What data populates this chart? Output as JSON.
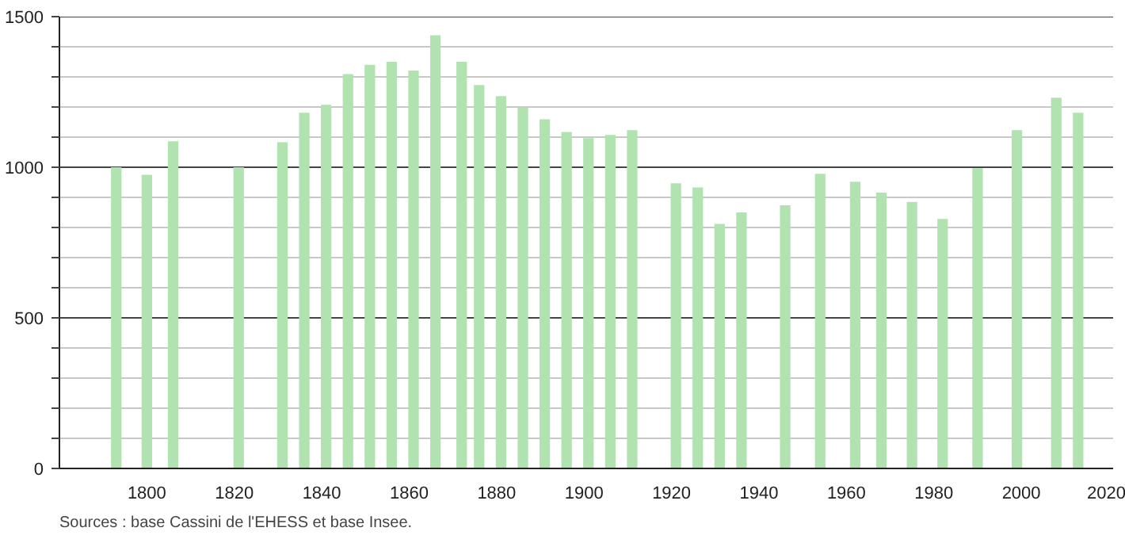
{
  "chart_data": {
    "type": "bar",
    "x": [
      1793,
      1800,
      1806,
      1821,
      1831,
      1836,
      1841,
      1846,
      1851,
      1856,
      1861,
      1866,
      1872,
      1876,
      1881,
      1886,
      1891,
      1896,
      1901,
      1906,
      1911,
      1921,
      1926,
      1931,
      1936,
      1946,
      1954,
      1962,
      1968,
      1975,
      1982,
      1990,
      1999,
      2008,
      2013
    ],
    "values": [
      1000,
      975,
      1086,
      1000,
      1083,
      1181,
      1207,
      1309,
      1340,
      1350,
      1321,
      1438,
      1350,
      1273,
      1236,
      1199,
      1159,
      1117,
      1097,
      1107,
      1123,
      947,
      933,
      812,
      850,
      874,
      978,
      952,
      916,
      885,
      828,
      997,
      1123,
      1231,
      1181
    ],
    "color": "#b0e3b0",
    "xlim": [
      1780,
      2021
    ],
    "xticks": [
      1800,
      1820,
      1840,
      1860,
      1880,
      1900,
      1920,
      1940,
      1960,
      1980,
      2000,
      2020
    ],
    "ylim": [
      0,
      1500
    ],
    "yticks": [
      0,
      {
        "value": 100,
        "label": null
      },
      {
        "value": 200,
        "label": null
      },
      {
        "value": 300,
        "label": null
      },
      {
        "value": 400,
        "label": null
      },
      500,
      {
        "value": 600,
        "label": null
      },
      {
        "value": 700,
        "label": null
      },
      {
        "value": 800,
        "label": null
      },
      {
        "value": 900,
        "label": null
      },
      1000,
      {
        "value": 1100,
        "label": null
      },
      {
        "value": 1200,
        "label": null
      },
      {
        "value": 1300,
        "label": null
      },
      {
        "value": 1400,
        "label": null
      },
      1500
    ],
    "grid": "y",
    "annotations": [
      "Sources : base Cassini de l'EHESS et base Insee."
    ]
  }
}
